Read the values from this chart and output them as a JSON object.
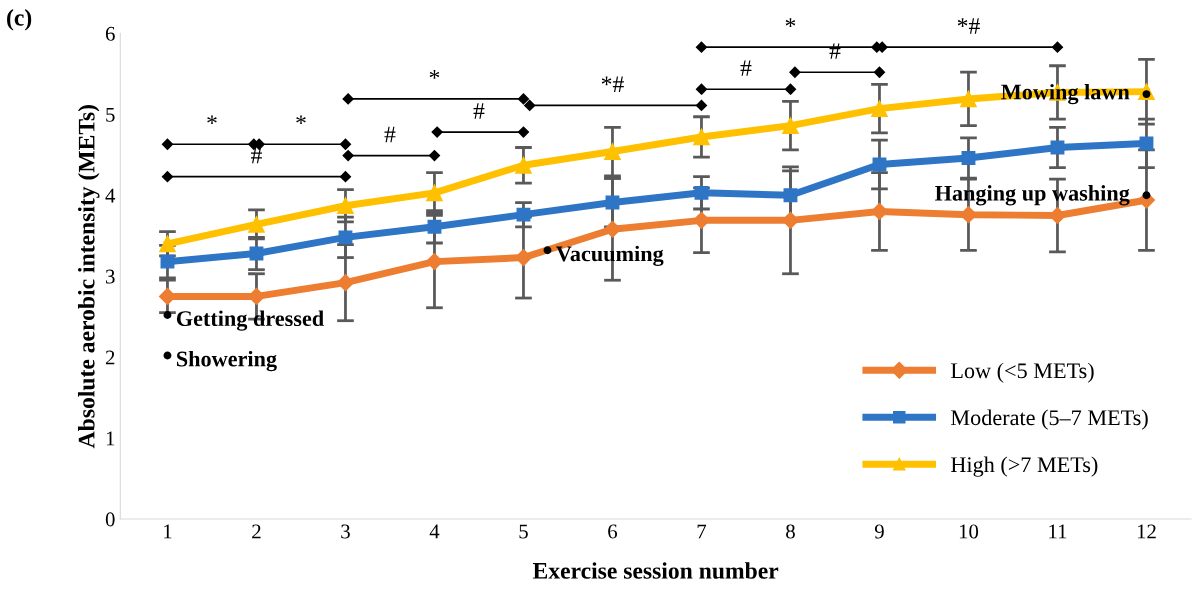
{
  "chart_data": {
    "type": "line",
    "xlabel": "Exercise session number",
    "ylabel": "Absolute aerobic intensity (METs)",
    "x": [
      1,
      2,
      3,
      4,
      5,
      6,
      7,
      8,
      9,
      10,
      11,
      12
    ],
    "xlim": [
      0.47,
      12.5
    ],
    "xticks": [
      1,
      2,
      3,
      4,
      5,
      6,
      7,
      8,
      9,
      10,
      11,
      12
    ],
    "ylim": [
      0,
      6
    ],
    "yticks": [
      0,
      1,
      2,
      3,
      4,
      5,
      6
    ],
    "grid": false,
    "legend": "bottom right",
    "line_style": "solid",
    "series": [
      {
        "name": "Low (<5 METs)",
        "color": "#ed7d31",
        "marker": "diamond",
        "values": [
          2.75,
          2.75,
          2.92,
          3.18,
          3.23,
          3.58,
          3.69,
          3.69,
          3.8,
          3.76,
          3.75,
          3.94
        ],
        "errors": [
          0.2,
          0.28,
          0.47,
          0.57,
          0.5,
          0.63,
          0.4,
          0.66,
          0.48,
          0.44,
          0.45,
          0.62
        ]
      },
      {
        "name": "Moderate (5–7 METs)",
        "color": "#2e75c6",
        "marker": "square",
        "values": [
          3.18,
          3.28,
          3.48,
          3.61,
          3.76,
          3.91,
          4.03,
          4.0,
          4.38,
          4.46,
          4.59,
          4.64
        ],
        "errors": [
          0.2,
          0.2,
          0.25,
          0.2,
          0.15,
          0.3,
          0.2,
          0.3,
          0.3,
          0.25,
          0.25,
          0.3
        ]
      },
      {
        "name": "High (>7 METs)",
        "color": "#ffc000",
        "marker": "triangle",
        "values": [
          3.4,
          3.64,
          3.87,
          4.03,
          4.37,
          4.54,
          4.72,
          4.86,
          5.07,
          5.19,
          5.27,
          5.28
        ],
        "errors": [
          0.15,
          0.18,
          0.2,
          0.25,
          0.22,
          0.3,
          0.25,
          0.3,
          0.3,
          0.33,
          0.33,
          0.4
        ]
      },
      {
        "type": "line",
        "color": "#000000",
        "marker": "diamond",
        "x": [
          1,
          1.97
        ],
        "values": [
          4.63,
          4.63
        ]
      },
      {
        "type": "line",
        "color": "#000000",
        "marker": "diamond",
        "x": [
          2.03,
          3
        ],
        "values": [
          4.63,
          4.63
        ]
      },
      {
        "type": "line",
        "color": "#000000",
        "marker": "diamond",
        "x": [
          1,
          3
        ],
        "values": [
          4.23,
          4.23
        ]
      },
      {
        "type": "line",
        "color": "#000000",
        "marker": "diamond",
        "x": [
          3.03,
          4
        ],
        "values": [
          4.49,
          4.49
        ]
      },
      {
        "type": "line",
        "color": "#000000",
        "marker": "diamond",
        "x": [
          3.03,
          5
        ],
        "values": [
          5.19,
          5.19
        ]
      },
      {
        "type": "line",
        "color": "#000000",
        "marker": "diamond",
        "x": [
          4.03,
          5
        ],
        "values": [
          4.78,
          4.78
        ]
      },
      {
        "type": "line",
        "color": "#000000",
        "marker": "diamond",
        "x": [
          5.07,
          7
        ],
        "values": [
          5.11,
          5.11
        ]
      },
      {
        "type": "line",
        "color": "#000000",
        "marker": "diamond",
        "x": [
          7,
          8
        ],
        "values": [
          5.31,
          5.31
        ]
      },
      {
        "type": "line",
        "color": "#000000",
        "marker": "diamond",
        "x": [
          7,
          8.97
        ],
        "values": [
          5.83,
          5.83
        ]
      },
      {
        "type": "line",
        "color": "#000000",
        "marker": "diamond",
        "x": [
          8.05,
          9
        ],
        "values": [
          5.52,
          5.52
        ]
      },
      {
        "type": "line",
        "color": "#000000",
        "marker": "diamond",
        "x": [
          9.03,
          11
        ],
        "values": [
          5.83,
          5.83
        ]
      },
      {
        "type": "scatter",
        "color": "#000000",
        "marker": "circle",
        "x": [
          1,
          1,
          5.27,
          12,
          12
        ],
        "values": [
          2.52,
          2.02,
          3.32,
          5.25,
          4.0
        ]
      }
    ],
    "annotations": [
      "(c)",
      {
        "text": "*",
        "x": 1.5,
        "y": 4.63
      },
      {
        "text": "*",
        "x": 2.5,
        "y": 4.63
      },
      {
        "text": "#",
        "x": 2,
        "y": 4.23
      },
      {
        "text": "#",
        "x": 3.5,
        "y": 4.49
      },
      {
        "text": "*",
        "x": 4,
        "y": 5.19
      },
      {
        "text": "#",
        "x": 4.5,
        "y": 4.78
      },
      {
        "text": "*#",
        "x": 6,
        "y": 5.11
      },
      {
        "text": "#",
        "x": 7.5,
        "y": 5.31
      },
      {
        "text": "*",
        "x": 8,
        "y": 5.83
      },
      {
        "text": "#",
        "x": 8.5,
        "y": 5.52
      },
      {
        "text": "*#",
        "x": 10,
        "y": 5.83
      },
      {
        "text": "Getting dressed",
        "x": 1,
        "y": 2.52
      },
      {
        "text": "Showering",
        "x": 1,
        "y": 2.02
      },
      {
        "text": "Vacuuming",
        "x": 5.27,
        "y": 3.32
      },
      {
        "text": "Mowing lawn",
        "x": 12,
        "y": 5.25
      },
      {
        "text": "Hanging up washing",
        "x": 12,
        "y": 4.0
      }
    ]
  }
}
